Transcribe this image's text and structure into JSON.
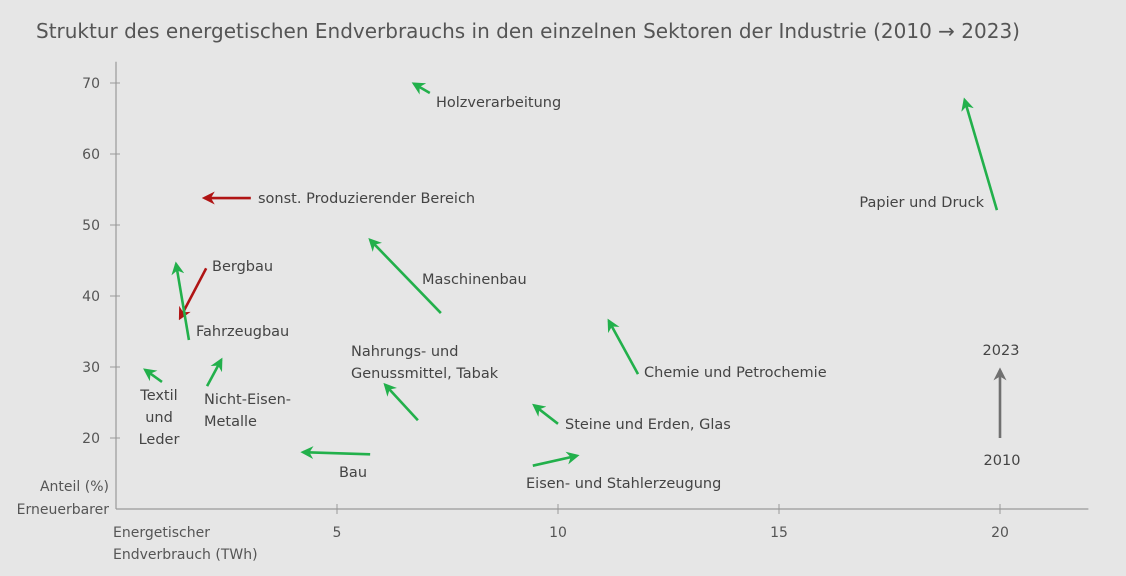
{
  "chart_data": {
    "type": "arrow-scatter",
    "title": "Struktur des energetischen Endverbrauchs in den einzelnen Sektoren der Industrie (2010 → 2023)",
    "xlabel": [
      "Energetischer",
      "Endverbrauch (TWh)"
    ],
    "ylabel": [
      "Anteil (%)",
      "Erneuerbarer"
    ],
    "xlim": [
      0,
      22
    ],
    "ylim": [
      10,
      73
    ],
    "xticks": [
      5,
      10,
      15,
      20
    ],
    "yticks": [
      20,
      30,
      40,
      50,
      60,
      70
    ],
    "grid": false,
    "colors": {
      "increase": "#22b04b",
      "decrease": "#b01414",
      "legend": "#707070"
    },
    "legend": {
      "from": "2010",
      "to": "2023",
      "placement": "right"
    },
    "series": [
      {
        "name": [
          "Holzverarbeitung"
        ],
        "from": [
          7.1,
          68.6
        ],
        "to": [
          6.74,
          69.9
        ],
        "color": "increase"
      },
      {
        "name": [
          "sonst. Produzierender Bereich"
        ],
        "from": [
          3.05,
          53.8
        ],
        "to": [
          2.0,
          53.8
        ],
        "color": "decrease"
      },
      {
        "name": [
          "Papier und Druck"
        ],
        "from": [
          19.93,
          52.1
        ],
        "to": [
          19.2,
          67.6
        ],
        "color": "increase"
      },
      {
        "name": [
          "Maschinenbau"
        ],
        "from": [
          7.35,
          37.6
        ],
        "to": [
          5.75,
          47.9
        ],
        "color": "increase"
      },
      {
        "name": [
          "Bergbau"
        ],
        "from": [
          2.04,
          43.9
        ],
        "to": [
          1.45,
          36.9
        ],
        "color": "decrease"
      },
      {
        "name": [
          "Fahrzeugbau"
        ],
        "from": [
          1.65,
          33.8
        ],
        "to": [
          1.36,
          44.5
        ],
        "color": "increase"
      },
      {
        "name": [
          "Textil",
          "und",
          "Leder"
        ],
        "from": [
          1.04,
          27.9
        ],
        "to": [
          0.66,
          29.6
        ],
        "color": "increase"
      },
      {
        "name": [
          "Nicht-Eisen-",
          "Metalle"
        ],
        "from": [
          2.06,
          27.3
        ],
        "to": [
          2.38,
          31.0
        ],
        "color": "increase"
      },
      {
        "name": [
          "Nahrungs- und",
          "Genussmittel, Tabak"
        ],
        "from": [
          6.83,
          22.5
        ],
        "to": [
          6.09,
          27.5
        ],
        "color": "increase"
      },
      {
        "name": [
          "Chemie und Petrochemie"
        ],
        "from": [
          11.81,
          29.0
        ],
        "to": [
          11.15,
          36.5
        ],
        "color": "increase"
      },
      {
        "name": [
          "Steine und Erden, Glas"
        ],
        "from": [
          10.0,
          22.0
        ],
        "to": [
          9.46,
          24.6
        ],
        "color": "increase"
      },
      {
        "name": [
          "Bau"
        ],
        "from": [
          5.75,
          17.7
        ],
        "to": [
          4.23,
          18.0
        ],
        "color": "increase"
      },
      {
        "name": [
          "Eisen- und Stahlerzeugung"
        ],
        "from": [
          9.43,
          16.1
        ],
        "to": [
          10.43,
          17.5
        ],
        "color": "increase"
      }
    ]
  }
}
